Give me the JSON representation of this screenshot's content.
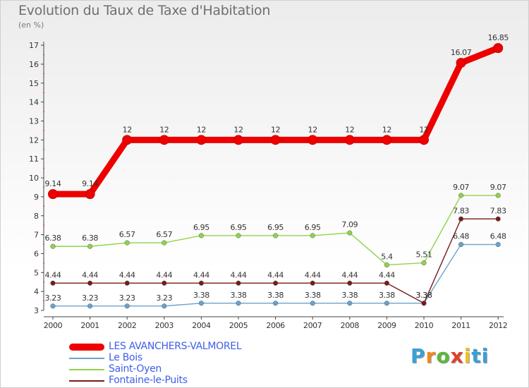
{
  "title": "Evolution du Taux de Taxe d'Habitation",
  "unit": "(en %)",
  "brand": {
    "text": "Proxiti",
    "letters": [
      "P",
      "r",
      "o",
      "x",
      "i",
      "ti"
    ]
  },
  "chart_data": {
    "type": "line",
    "title": "Evolution du Taux de Taxe d'Habitation",
    "ylabel": "(en %)",
    "xlabel": "",
    "x": [
      "2000",
      "2001",
      "2002",
      "2003",
      "2004",
      "2005",
      "2006",
      "2007",
      "2008",
      "2009",
      "2010",
      "2011",
      "2012"
    ],
    "ylim": [
      3,
      17
    ],
    "yticks": [
      3,
      4,
      5,
      6,
      7,
      8,
      9,
      10,
      11,
      12,
      13,
      14,
      15,
      16,
      17
    ],
    "grid": false,
    "legend_position": "bottom-left",
    "series": [
      {
        "name": "LES AVANCHERS-VALMOREL",
        "color": "#ee0000",
        "values": [
          9.14,
          9.14,
          12,
          12,
          12,
          12,
          12,
          12,
          12,
          12,
          12,
          16.07,
          16.85
        ],
        "labels": [
          "9.14",
          "9.14",
          "12",
          "12",
          "12",
          "12",
          "12",
          "12",
          "12",
          "12",
          "12",
          "16.07",
          "16.85"
        ]
      },
      {
        "name": "Le Bois",
        "color": "#6aa2cc",
        "values": [
          3.23,
          3.23,
          3.23,
          3.23,
          3.38,
          3.38,
          3.38,
          3.38,
          3.38,
          3.38,
          3.38,
          6.48,
          6.48
        ],
        "labels": [
          "3.23",
          "3.23",
          "3.23",
          "3.23",
          "3.38",
          "3.38",
          "3.38",
          "3.38",
          "3.38",
          "3.38",
          "3.38",
          "6.48",
          "6.48"
        ]
      },
      {
        "name": "Saint-Oyen",
        "color": "#8fd44a",
        "values": [
          6.38,
          6.38,
          6.57,
          6.57,
          6.95,
          6.95,
          6.95,
          6.95,
          7.09,
          5.4,
          5.51,
          9.07,
          9.07
        ],
        "labels": [
          "6.38",
          "6.38",
          "6.57",
          "6.57",
          "6.95",
          "6.95",
          "6.95",
          "6.95",
          "7.09",
          "5.4",
          "5.51",
          "9.07",
          "9.07"
        ]
      },
      {
        "name": "Fontaine-le-Puits",
        "color": "#7a1a1a",
        "values": [
          4.44,
          4.44,
          4.44,
          4.44,
          4.44,
          4.44,
          4.44,
          4.44,
          4.44,
          4.44,
          3.38,
          7.83,
          7.83
        ],
        "labels": [
          "4.44",
          "4.44",
          "4.44",
          "4.44",
          "4.44",
          "4.44",
          "4.44",
          "4.44",
          "4.44",
          "4.44",
          "3.38",
          "7.83",
          "7.83"
        ]
      }
    ]
  }
}
